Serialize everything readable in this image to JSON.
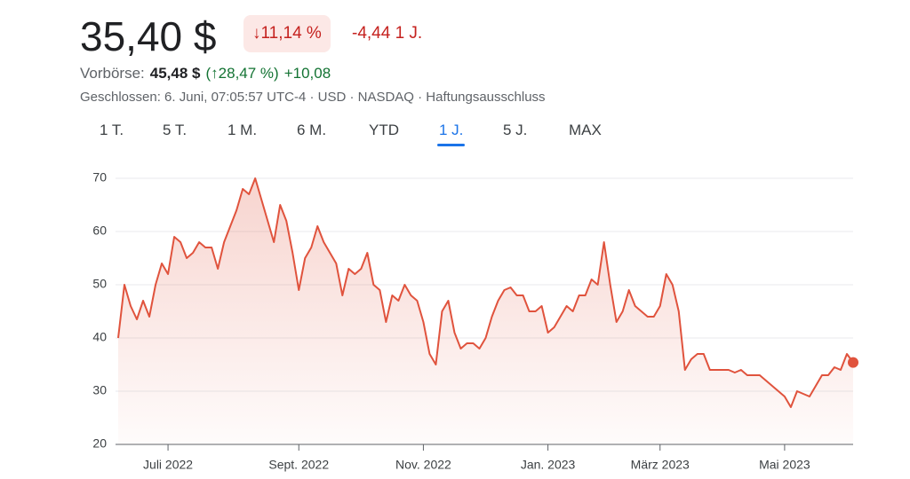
{
  "header": {
    "price": "35,40 $",
    "change_pct": "↓11,14 %",
    "change_abs": "-4,44 1 J.",
    "premarket_label": "Vorbörse:",
    "premarket_price": "45,48 $",
    "premarket_pct": "(↑28,47 %)",
    "premarket_abs": "+10,08",
    "meta": "Geschlossen: 6. Juni, 07:05:57 UTC-4 · USD · NASDAQ · Haftungsausschluss"
  },
  "tabs": {
    "items": [
      "1 T.",
      "5 T.",
      "1 M.",
      "6 M.",
      "YTD",
      "1 J.",
      "5 J.",
      "MAX"
    ],
    "selected": 5
  },
  "chart_data": {
    "type": "line",
    "color": "#e0533d",
    "grid": true,
    "ylim": [
      20,
      70
    ],
    "yticks": [
      20,
      30,
      40,
      50,
      60,
      70
    ],
    "categories": [
      null,
      null,
      null,
      null,
      null,
      null,
      null,
      null,
      "Juli 2022",
      null,
      null,
      null,
      null,
      null,
      null,
      null,
      null,
      null,
      null,
      null,
      null,
      null,
      null,
      null,
      null,
      null,
      null,
      null,
      null,
      "Sept. 2022",
      null,
      null,
      null,
      null,
      null,
      null,
      null,
      null,
      null,
      null,
      null,
      null,
      null,
      null,
      null,
      null,
      null,
      null,
      null,
      "Nov. 2022",
      null,
      null,
      null,
      null,
      null,
      null,
      null,
      null,
      null,
      null,
      null,
      null,
      null,
      null,
      null,
      null,
      null,
      null,
      null,
      "Jan. 2023",
      null,
      null,
      null,
      null,
      null,
      null,
      null,
      null,
      null,
      null,
      null,
      null,
      null,
      null,
      null,
      null,
      null,
      "März 2023",
      null,
      null,
      null,
      null,
      null,
      null,
      null,
      null,
      null,
      null,
      null,
      null,
      null,
      null,
      null,
      null,
      null,
      null,
      null,
      "Mai 2023",
      null,
      null,
      null,
      null,
      null,
      null,
      null,
      null,
      null,
      null,
      null
    ],
    "values": [
      40,
      50,
      46,
      43.5,
      47,
      44,
      50,
      54,
      52,
      59,
      58,
      55,
      56,
      58,
      57,
      57,
      53,
      58,
      61,
      64,
      68,
      67,
      70,
      66,
      62,
      58,
      65,
      62,
      56,
      49,
      55,
      57,
      61,
      58,
      56,
      54,
      48,
      53,
      52,
      53,
      56,
      50,
      49,
      43,
      48,
      47,
      50,
      48,
      47,
      43,
      37,
      35,
      45,
      47,
      41,
      38,
      39,
      39,
      38,
      40,
      44,
      47,
      49,
      49.5,
      48,
      48,
      45,
      45,
      46,
      41,
      42,
      44,
      46,
      45,
      48,
      48,
      51,
      50,
      58,
      50,
      43,
      45,
      49,
      46,
      45,
      44,
      44,
      46,
      52,
      50,
      45,
      34,
      36,
      37,
      37,
      34,
      34,
      34,
      34,
      33.5,
      34,
      33,
      33,
      33,
      32,
      31,
      30,
      29,
      27,
      30,
      29.5,
      29,
      31,
      33,
      33,
      34.5,
      34,
      37,
      35.4
    ]
  }
}
